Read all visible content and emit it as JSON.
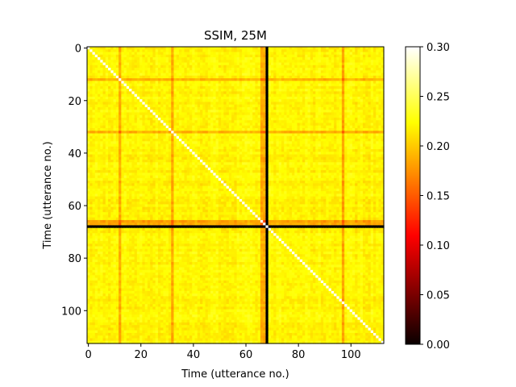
{
  "chart_data": {
    "type": "heatmap",
    "title": "SSIM, 25M",
    "xlabel": "Time (utterance no.)",
    "ylabel": "Time (utterance no.)",
    "n": 113,
    "xlim": [
      0,
      112
    ],
    "ylim": [
      112,
      0
    ],
    "x_ticks": [
      0,
      20,
      40,
      60,
      80,
      100
    ],
    "y_ticks": [
      0,
      20,
      40,
      60,
      80,
      100
    ],
    "colormap": "hot",
    "clim": [
      0.0,
      0.3
    ],
    "colorbar_ticks": [
      "0.00",
      "0.05",
      "0.10",
      "0.15",
      "0.20",
      "0.25",
      "0.30"
    ],
    "diagonal_value": 0.3,
    "typical_value": 0.22,
    "low_similarity_rows": [
      12,
      32,
      66,
      67
    ],
    "low_similarity_cols": [
      12,
      32,
      66,
      67,
      97
    ],
    "zero_index": 68,
    "zero_color": "#000000",
    "grid": false
  }
}
